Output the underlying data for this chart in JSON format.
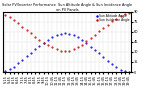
{
  "title": "Solar PV/Inverter Performance  Sun Altitude Angle & Sun Incidence Angle on PV Panels",
  "blue_label": "Sun Altitude Angle",
  "red_label": "Sun Incidence Angle",
  "blue_color": "#0000dd",
  "red_color": "#cc0000",
  "ylim": [
    0,
    90
  ],
  "background_color": "#ffffff",
  "grid_color": "#aaaaaa",
  "x_times": [
    "5:15",
    "5:45",
    "6:15",
    "6:45",
    "7:15",
    "7:45",
    "8:15",
    "8:45",
    "9:15",
    "9:45",
    "10:15",
    "10:45",
    "11:15",
    "11:45",
    "12:15",
    "12:45",
    "13:15",
    "13:45",
    "14:15",
    "14:45",
    "15:15",
    "15:45",
    "16:15",
    "16:45",
    "17:15",
    "17:45",
    "18:15",
    "18:45",
    "19:15",
    "19:45"
  ],
  "blue_y": [
    2,
    4,
    8,
    13,
    18,
    24,
    29,
    34,
    39,
    44,
    48,
    52,
    55,
    57,
    58,
    57,
    55,
    52,
    48,
    43,
    38,
    33,
    28,
    22,
    17,
    12,
    7,
    3,
    1,
    0
  ],
  "red_y": [
    85,
    82,
    78,
    73,
    68,
    63,
    58,
    53,
    48,
    44,
    40,
    37,
    34,
    32,
    31,
    32,
    34,
    37,
    41,
    46,
    51,
    56,
    61,
    66,
    71,
    76,
    80,
    84,
    87,
    89
  ],
  "yticks": [
    0,
    15,
    30,
    45,
    60,
    75,
    90
  ],
  "ytick_labels": [
    "0",
    "15",
    "30",
    "45",
    "60",
    "75",
    "90"
  ],
  "title_fontsize": 2.5,
  "tick_fontsize": 2.5,
  "legend_fontsize": 2.2,
  "marker_size": 1.0
}
